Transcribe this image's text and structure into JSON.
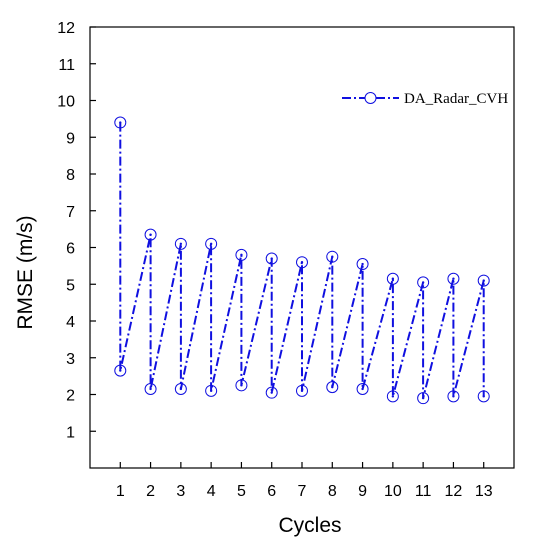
{
  "chart_data": {
    "type": "line",
    "xlabel": "Cycles",
    "ylabel": "RMSE (m/s)",
    "xlim": [
      0,
      14
    ],
    "ylim": [
      0,
      12
    ],
    "xticks": [
      1,
      2,
      3,
      4,
      5,
      6,
      7,
      8,
      9,
      10,
      11,
      12,
      13
    ],
    "yticks": [
      1,
      2,
      3,
      4,
      5,
      6,
      7,
      8,
      9,
      10,
      11,
      12
    ],
    "grid": false,
    "legend": {
      "placement": "top-right"
    },
    "series": [
      {
        "name": "DA_Radar_CVH",
        "color": "#1010e0",
        "marker": "circle-open",
        "line_style": "dash-dot",
        "x": [
          1,
          1,
          2,
          2,
          3,
          3,
          4,
          4,
          5,
          5,
          6,
          6,
          7,
          7,
          8,
          8,
          9,
          9,
          10,
          10,
          11,
          11,
          12,
          12,
          13,
          13
        ],
        "y": [
          9.4,
          2.65,
          6.35,
          2.15,
          6.1,
          2.15,
          6.1,
          2.1,
          5.8,
          2.25,
          5.7,
          2.05,
          5.6,
          2.1,
          5.75,
          2.2,
          5.55,
          2.15,
          5.15,
          1.95,
          5.05,
          1.9,
          5.15,
          1.95,
          5.1,
          1.95
        ]
      }
    ]
  }
}
